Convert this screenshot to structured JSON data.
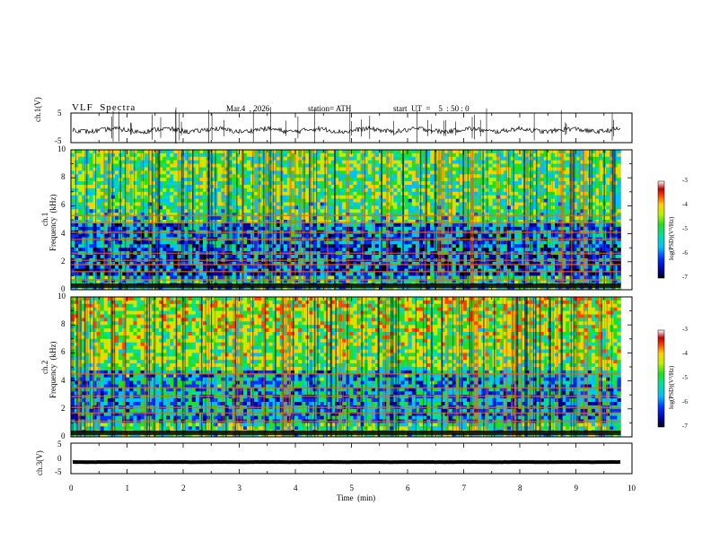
{
  "header": {
    "title": "VLF  Spectra",
    "date": "Mar.4  , 2026",
    "station": "station= ATH",
    "start": "start  UT  =    5  : 50 : 0"
  },
  "chart_data": {
    "type": "heatmap",
    "xlabel": "Time  (min)",
    "xlim": [
      0,
      10
    ],
    "xticks": [
      "0",
      "1",
      "2",
      "3",
      "4",
      "5",
      "6",
      "7",
      "8",
      "9",
      "10"
    ],
    "panels": [
      {
        "id": "ch1-waveform",
        "type": "line",
        "ylabel": "ch.1(V)",
        "ylim": [
          -5,
          5
        ],
        "yticks": [
          "5",
          "-5"
        ],
        "trace_level": -0.8,
        "data_end_min": 9.8
      },
      {
        "id": "ch1-spectrogram",
        "type": "heatmap",
        "ylabel": "ch.1",
        "ylabel2": "Frequency  (kHz)",
        "ylim": [
          0,
          10
        ],
        "yticks": [
          "0",
          "2",
          "4",
          "6",
          "8",
          "10"
        ],
        "data_end_min": 9.8,
        "colorbar": {
          "label": "log(PSD)(V²/Hz)",
          "range": [
            -7,
            -3
          ],
          "ticks": [
            "-3",
            "-4",
            "-5",
            "-6",
            "-7"
          ]
        },
        "bands_khz": [
          0.3,
          0.7,
          1.3,
          1.8,
          2.1,
          2.6,
          3.6,
          4.1,
          4.8,
          5.3
        ]
      },
      {
        "id": "ch2-spectrogram",
        "type": "heatmap",
        "ylabel": "ch.2",
        "ylabel2": "Frequency  (kHz)",
        "ylim": [
          0,
          10
        ],
        "yticks": [
          "0",
          "2",
          "4",
          "6",
          "8",
          "10"
        ],
        "data_end_min": 9.8,
        "colorbar": {
          "label": "log(PSD)(V²/Hz)",
          "range": [
            -7,
            -3
          ],
          "ticks": [
            "-3",
            "-4",
            "-5",
            "-6",
            "-7"
          ]
        },
        "bands_khz": [
          0.3,
          1.1,
          1.7,
          2.1,
          2.9,
          3.5,
          4.5
        ]
      },
      {
        "id": "ch3-waveform",
        "type": "line",
        "ylabel": "ch.3(V)",
        "ylim": [
          -5,
          5
        ],
        "yticks": [
          "5",
          "0",
          "-5"
        ],
        "trace_level": -1.2,
        "data_end_min": 9.8
      }
    ]
  },
  "colors": {
    "colormap": [
      "#000000",
      "#0000a0",
      "#0030ff",
      "#00c0ff",
      "#00e0a0",
      "#20e020",
      "#c0f000",
      "#ffd000",
      "#ff4000",
      "#c00000",
      "#ffffff"
    ]
  }
}
